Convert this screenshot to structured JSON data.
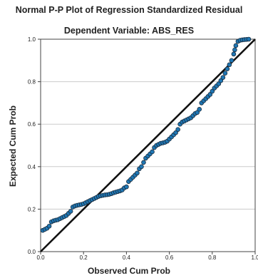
{
  "chart_data": {
    "type": "scatter",
    "title": "Normal P-P Plot of Regression Standardized Residual",
    "subtitle": "Dependent Variable: ABS_RES",
    "xlabel": "Observed Cum Prob",
    "ylabel": "Expected Cum Prob",
    "xlim": [
      0,
      1
    ],
    "ylim": [
      0,
      1
    ],
    "xticks": [
      "0.0",
      "0.2",
      "0.4",
      "0.6",
      "0.8",
      "1.0"
    ],
    "yticks": [
      "0.0",
      "0.2",
      "0.4",
      "0.6",
      "0.8",
      "1.0"
    ],
    "grid": "horizontal",
    "reference_line": {
      "x": [
        0,
        1
      ],
      "y": [
        0,
        1
      ]
    },
    "colors": {
      "point_fill": "#1f77b4",
      "point_stroke": "#1a2b3c",
      "line": "#111111",
      "grid": "#cccccc",
      "axis": "#444444"
    },
    "series": [
      {
        "points": [
          [
            0.01,
            0.1
          ],
          [
            0.02,
            0.105
          ],
          [
            0.03,
            0.11
          ],
          [
            0.04,
            0.12
          ],
          [
            0.05,
            0.14
          ],
          [
            0.06,
            0.145
          ],
          [
            0.07,
            0.148
          ],
          [
            0.08,
            0.15
          ],
          [
            0.09,
            0.155
          ],
          [
            0.1,
            0.16
          ],
          [
            0.11,
            0.165
          ],
          [
            0.12,
            0.17
          ],
          [
            0.13,
            0.18
          ],
          [
            0.14,
            0.19
          ],
          [
            0.15,
            0.21
          ],
          [
            0.16,
            0.215
          ],
          [
            0.17,
            0.218
          ],
          [
            0.18,
            0.22
          ],
          [
            0.19,
            0.222
          ],
          [
            0.2,
            0.225
          ],
          [
            0.21,
            0.23
          ],
          [
            0.22,
            0.235
          ],
          [
            0.23,
            0.24
          ],
          [
            0.24,
            0.245
          ],
          [
            0.25,
            0.25
          ],
          [
            0.26,
            0.255
          ],
          [
            0.27,
            0.26
          ],
          [
            0.28,
            0.263
          ],
          [
            0.29,
            0.265
          ],
          [
            0.3,
            0.267
          ],
          [
            0.31,
            0.268
          ],
          [
            0.32,
            0.27
          ],
          [
            0.33,
            0.273
          ],
          [
            0.34,
            0.277
          ],
          [
            0.35,
            0.28
          ],
          [
            0.36,
            0.283
          ],
          [
            0.37,
            0.286
          ],
          [
            0.38,
            0.29
          ],
          [
            0.39,
            0.3
          ],
          [
            0.4,
            0.305
          ],
          [
            0.41,
            0.33
          ],
          [
            0.42,
            0.34
          ],
          [
            0.43,
            0.35
          ],
          [
            0.44,
            0.36
          ],
          [
            0.45,
            0.37
          ],
          [
            0.46,
            0.39
          ],
          [
            0.47,
            0.4
          ],
          [
            0.48,
            0.42
          ],
          [
            0.49,
            0.44
          ],
          [
            0.5,
            0.45
          ],
          [
            0.51,
            0.46
          ],
          [
            0.52,
            0.47
          ],
          [
            0.53,
            0.49
          ],
          [
            0.54,
            0.5
          ],
          [
            0.55,
            0.505
          ],
          [
            0.56,
            0.51
          ],
          [
            0.57,
            0.512
          ],
          [
            0.58,
            0.515
          ],
          [
            0.59,
            0.52
          ],
          [
            0.6,
            0.53
          ],
          [
            0.61,
            0.54
          ],
          [
            0.62,
            0.55
          ],
          [
            0.63,
            0.56
          ],
          [
            0.64,
            0.575
          ],
          [
            0.65,
            0.6
          ],
          [
            0.66,
            0.61
          ],
          [
            0.67,
            0.615
          ],
          [
            0.68,
            0.62
          ],
          [
            0.69,
            0.625
          ],
          [
            0.7,
            0.63
          ],
          [
            0.71,
            0.64
          ],
          [
            0.72,
            0.65
          ],
          [
            0.73,
            0.655
          ],
          [
            0.74,
            0.67
          ],
          [
            0.75,
            0.7
          ],
          [
            0.76,
            0.71
          ],
          [
            0.77,
            0.72
          ],
          [
            0.78,
            0.73
          ],
          [
            0.79,
            0.74
          ],
          [
            0.8,
            0.755
          ],
          [
            0.81,
            0.77
          ],
          [
            0.82,
            0.78
          ],
          [
            0.83,
            0.79
          ],
          [
            0.84,
            0.805
          ],
          [
            0.85,
            0.82
          ],
          [
            0.86,
            0.84
          ],
          [
            0.87,
            0.86
          ],
          [
            0.88,
            0.88
          ],
          [
            0.89,
            0.9
          ],
          [
            0.9,
            0.93
          ],
          [
            0.905,
            0.95
          ],
          [
            0.91,
            0.97
          ],
          [
            0.92,
            0.99
          ],
          [
            0.93,
            0.995
          ],
          [
            0.94,
            0.997
          ],
          [
            0.95,
            0.998
          ],
          [
            0.96,
            0.999
          ],
          [
            0.97,
            1.0
          ]
        ]
      }
    ]
  }
}
